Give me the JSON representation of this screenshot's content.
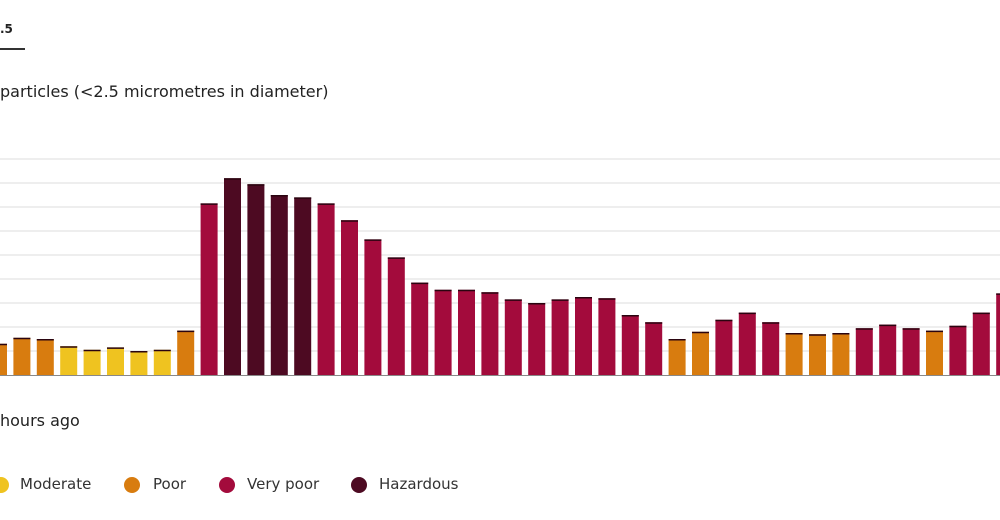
{
  "tab": {
    "label": ".5"
  },
  "chart_data": {
    "type": "bar",
    "title": "particles (<2.5 micrometres in diameter)",
    "xlabel": "hours ago",
    "ylabel": "",
    "ylim": [
      0,
      9
    ],
    "grid": true,
    "legend_position": "bottom-left",
    "values": [
      1.3,
      1.55,
      1.5,
      1.2,
      1.05,
      1.15,
      1.0,
      1.05,
      1.85,
      7.15,
      8.2,
      7.95,
      7.5,
      7.4,
      7.15,
      6.45,
      5.65,
      4.9,
      3.85,
      3.55,
      3.55,
      3.45,
      3.15,
      3.0,
      3.15,
      3.25,
      3.2,
      2.5,
      2.2,
      1.5,
      1.8,
      2.3,
      2.6,
      2.2,
      1.75,
      1.7,
      1.75,
      1.95,
      2.1,
      1.95,
      1.85,
      2.05,
      2.6,
      3.4
    ],
    "categories_quality": [
      "Poor",
      "Poor",
      "Poor",
      "Moderate",
      "Moderate",
      "Moderate",
      "Moderate",
      "Moderate",
      "Poor",
      "Very poor",
      "Hazardous",
      "Hazardous",
      "Hazardous",
      "Hazardous",
      "Very poor",
      "Very poor",
      "Very poor",
      "Very poor",
      "Very poor",
      "Very poor",
      "Very poor",
      "Very poor",
      "Very poor",
      "Very poor",
      "Very poor",
      "Very poor",
      "Very poor",
      "Very poor",
      "Very poor",
      "Poor",
      "Poor",
      "Very poor",
      "Very poor",
      "Very poor",
      "Poor",
      "Poor",
      "Poor",
      "Very poor",
      "Very poor",
      "Very poor",
      "Poor",
      "Very poor",
      "Very poor",
      "Very poor"
    ],
    "legend": [
      {
        "label": "Moderate",
        "color": "#efc320"
      },
      {
        "label": "Poor",
        "color": "#d87c0f"
      },
      {
        "label": "Very poor",
        "color": "#a30b3c"
      },
      {
        "label": "Hazardous",
        "color": "#4d0a22"
      }
    ],
    "gridline_color": "#dcdcdc",
    "axis_color": "#888888"
  }
}
